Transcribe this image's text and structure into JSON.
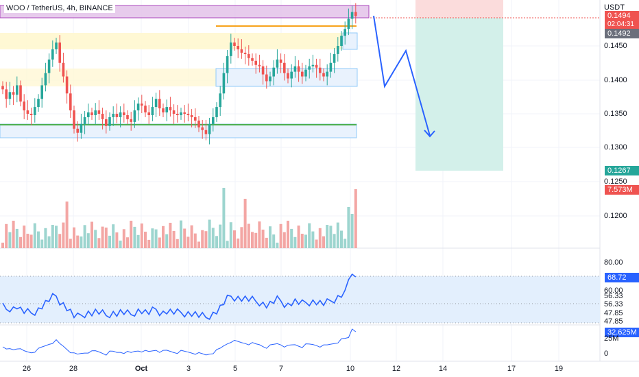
{
  "header": {
    "pair_title": "WOO / TetherUS, 4h, BINANCE",
    "currency": "USDT"
  },
  "price_axis": {
    "ticks": [
      "0.1450",
      "0.1400",
      "0.1350",
      "0.1300",
      "0.1250",
      "0.1200"
    ]
  },
  "tags": {
    "last_price": "0.1494",
    "countdown": "02:04:31",
    "crosshair_price": "0.1492",
    "target_price": "0.1267",
    "volume_value": "7.573M",
    "rsi_value": "68.72",
    "obv_value": "32.625M"
  },
  "rsi_axis": {
    "ticks": [
      "80.00",
      "60.00",
      "56.33",
      "56.33",
      "47.85",
      "47.85"
    ]
  },
  "obv_axis": {
    "ticks": [
      "25M",
      "0"
    ]
  },
  "x_axis": {
    "ticks": [
      "26",
      "28",
      "Oct",
      "3",
      "5",
      "7",
      "10",
      "12",
      "14",
      "17",
      "19"
    ]
  },
  "colors": {
    "up": "#26a69a",
    "down": "#ef5350",
    "vol_up": "#9dd5cf",
    "vol_down": "#f3a6a4",
    "rsi_line": "#2962ff",
    "rsi_band": "#e3effd",
    "forecast_arrow": "#2962ff",
    "resistance": "#f7a21b",
    "support": "#4caf50",
    "zone_purple": "#e1bee7",
    "zone_yellow": "#fff7cf",
    "zone_blue": "#e9f2fd",
    "short_stop": "#fbdcdc",
    "short_target": "#d3f0ea"
  },
  "chart_data": {
    "type": "candlestick",
    "title": "WOO / TetherUS, 4h, BINANCE",
    "ylabel": "USDT",
    "ylim": [
      0.1155,
      0.1515
    ],
    "x": [
      "26",
      "28",
      "Oct",
      "3",
      "5",
      "7",
      "10",
      "12",
      "14",
      "17",
      "19"
    ],
    "candles_close": [
      0.1386,
      0.1372,
      0.1382,
      0.1378,
      0.1392,
      0.1368,
      0.1355,
      0.135,
      0.1348,
      0.136,
      0.1372,
      0.1392,
      0.141,
      0.143,
      0.1445,
      0.1455,
      0.1425,
      0.1405,
      0.138,
      0.1355,
      0.1328,
      0.1322,
      0.1335,
      0.1345,
      0.1352,
      0.1348,
      0.1355,
      0.135,
      0.1342,
      0.1332,
      0.1345,
      0.135,
      0.1345,
      0.1352,
      0.1348,
      0.1342,
      0.1338,
      0.1355,
      0.1365,
      0.1362,
      0.1352,
      0.1348,
      0.136,
      0.1372,
      0.1358,
      0.1352,
      0.136,
      0.1355,
      0.135,
      0.1348,
      0.1352,
      0.135,
      0.1348,
      0.1345,
      0.134,
      0.133,
      0.1326,
      0.132,
      0.1335,
      0.1345,
      0.136,
      0.138,
      0.141,
      0.1435,
      0.1455,
      0.145,
      0.1445,
      0.144,
      0.1438,
      0.1432,
      0.1428,
      0.1422,
      0.142,
      0.1408,
      0.1398,
      0.1405,
      0.1418,
      0.143,
      0.1425,
      0.141,
      0.1402,
      0.1412,
      0.142,
      0.1412,
      0.1405,
      0.1415,
      0.142,
      0.1422,
      0.1418,
      0.141,
      0.1405,
      0.1412,
      0.1425,
      0.1438,
      0.145,
      0.1465,
      0.1475,
      0.149,
      0.15,
      0.1494
    ],
    "resistance_level": 0.1473,
    "support_level": 0.1324,
    "short_position": {
      "entry": 0.1492,
      "stop": 0.1515,
      "target": 0.1267
    },
    "forecast_path": [
      0.1482,
      0.1396,
      0.1435,
      0.1313,
      0.132
    ],
    "volume_last": 7.573,
    "rsi": {
      "last": 68.72,
      "upper_band": 68.72,
      "lower_band": 47.85,
      "mid": 56.33,
      "ylim": [
        40,
        85
      ]
    },
    "obv": {
      "last": 32.625,
      "ylim": [
        -10,
        40
      ]
    }
  }
}
